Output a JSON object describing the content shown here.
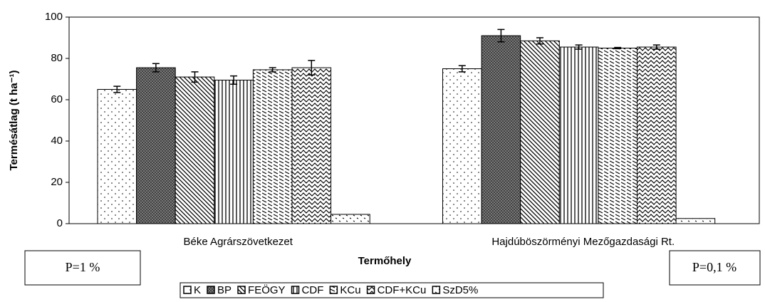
{
  "chart_data": {
    "type": "bar",
    "xlabel": "Termőhely",
    "ylabel": "Termésátlag (t ha⁻¹)",
    "categories": [
      "Béke Agrárszövetkezet",
      "Hajdúböszörményi Mezőgazdasági Rt."
    ],
    "ylim": [
      0,
      100
    ],
    "yticks": [
      0,
      20,
      40,
      60,
      80,
      100
    ],
    "grid": false,
    "annotations": [
      "P=1 %",
      "P=0,1 %"
    ],
    "series": [
      {
        "name": "K",
        "color": "#ffffff",
        "pattern": "dots",
        "values": [
          65,
          75
        ],
        "errors": [
          1.5,
          1.5
        ]
      },
      {
        "name": "BP",
        "color": "#808080",
        "pattern": "crosshatch",
        "values": [
          75.5,
          91
        ],
        "errors": [
          2,
          3
        ]
      },
      {
        "name": "FEÖGY",
        "color": "#ffffff",
        "pattern": "diagonal",
        "values": [
          71,
          88.5
        ],
        "errors": [
          2.5,
          1.5
        ]
      },
      {
        "name": "CDF",
        "color": "#ffffff",
        "pattern": "vertical",
        "values": [
          69.5,
          85.5
        ],
        "errors": [
          2,
          1
        ]
      },
      {
        "name": "KCu",
        "color": "#ffffff",
        "pattern": "dashes",
        "values": [
          74.5,
          85
        ],
        "errors": [
          1,
          0.3
        ]
      },
      {
        "name": "CDF+KCu",
        "color": "#ffffff",
        "pattern": "wave",
        "values": [
          75.5,
          85.5
        ],
        "errors": [
          3.5,
          1
        ]
      },
      {
        "name": "SzD5%",
        "color": "#ffffff",
        "pattern": "sparse",
        "values": [
          4.5,
          2.5
        ],
        "errors": [
          null,
          null
        ]
      }
    ]
  }
}
